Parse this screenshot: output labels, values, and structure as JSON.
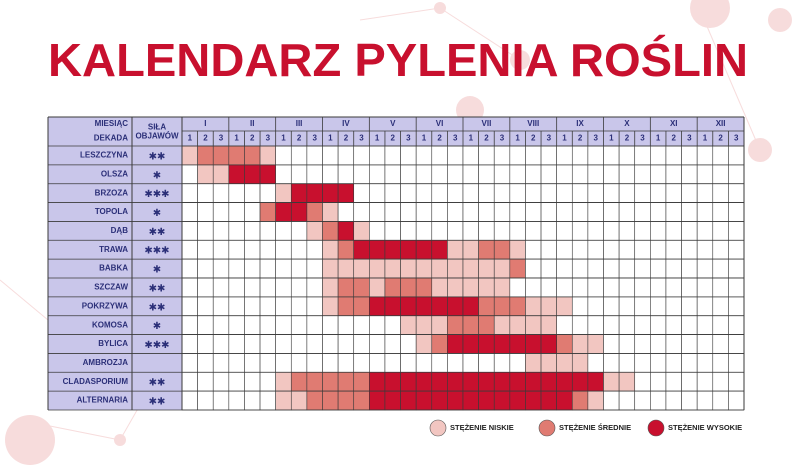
{
  "title": "KALENDARZ PYLENIA ROŚLIN",
  "table": {
    "header": {
      "month_label": "MIESIĄC",
      "decade_label": "DEKADA",
      "strength_label": "SIŁA OBJAWÓW",
      "months": [
        "I",
        "II",
        "III",
        "IV",
        "V",
        "VI",
        "VII",
        "VIII",
        "IX",
        "X",
        "XI",
        "XII"
      ],
      "decades": [
        "1",
        "2",
        "3"
      ]
    },
    "rows": [
      {
        "name": "LESZCZYNA",
        "strength": "✱✱",
        "levels": [
          1,
          2,
          2,
          2,
          2,
          1,
          0,
          0,
          0,
          0,
          0,
          0,
          0,
          0,
          0,
          0,
          0,
          0,
          0,
          0,
          0,
          0,
          0,
          0,
          0,
          0,
          0,
          0,
          0,
          0,
          0,
          0,
          0,
          0,
          0,
          0
        ]
      },
      {
        "name": "OLSZA",
        "strength": "✱",
        "levels": [
          0,
          1,
          1,
          3,
          3,
          3,
          0,
          0,
          0,
          0,
          0,
          0,
          0,
          0,
          0,
          0,
          0,
          0,
          0,
          0,
          0,
          0,
          0,
          0,
          0,
          0,
          0,
          0,
          0,
          0,
          0,
          0,
          0,
          0,
          0,
          0
        ]
      },
      {
        "name": "BRZOZA",
        "strength": "✱✱✱",
        "levels": [
          0,
          0,
          0,
          0,
          0,
          0,
          1,
          3,
          3,
          3,
          3,
          0,
          0,
          0,
          0,
          0,
          0,
          0,
          0,
          0,
          0,
          0,
          0,
          0,
          0,
          0,
          0,
          0,
          0,
          0,
          0,
          0,
          0,
          0,
          0,
          0
        ]
      },
      {
        "name": "TOPOLA",
        "strength": "✱",
        "levels": [
          0,
          0,
          0,
          0,
          0,
          2,
          3,
          3,
          2,
          1,
          0,
          0,
          0,
          0,
          0,
          0,
          0,
          0,
          0,
          0,
          0,
          0,
          0,
          0,
          0,
          0,
          0,
          0,
          0,
          0,
          0,
          0,
          0,
          0,
          0,
          0
        ]
      },
      {
        "name": "DĄB",
        "strength": "✱✱",
        "levels": [
          0,
          0,
          0,
          0,
          0,
          0,
          0,
          0,
          1,
          2,
          3,
          1,
          0,
          0,
          0,
          0,
          0,
          0,
          0,
          0,
          0,
          0,
          0,
          0,
          0,
          0,
          0,
          0,
          0,
          0,
          0,
          0,
          0,
          0,
          0,
          0
        ]
      },
      {
        "name": "TRAWA",
        "strength": "✱✱✱",
        "levels": [
          0,
          0,
          0,
          0,
          0,
          0,
          0,
          0,
          0,
          1,
          2,
          3,
          3,
          3,
          3,
          3,
          3,
          1,
          1,
          2,
          2,
          1,
          0,
          0,
          0,
          0,
          0,
          0,
          0,
          0,
          0,
          0,
          0,
          0,
          0,
          0
        ]
      },
      {
        "name": "BABKA",
        "strength": "✱",
        "levels": [
          0,
          0,
          0,
          0,
          0,
          0,
          0,
          0,
          0,
          1,
          1,
          1,
          1,
          1,
          1,
          1,
          1,
          1,
          1,
          1,
          1,
          2,
          0,
          0,
          0,
          0,
          0,
          0,
          0,
          0,
          0,
          0,
          0,
          0,
          0,
          0
        ]
      },
      {
        "name": "SZCZAW",
        "strength": "✱✱",
        "levels": [
          0,
          0,
          0,
          0,
          0,
          0,
          0,
          0,
          0,
          1,
          2,
          2,
          1,
          2,
          2,
          2,
          1,
          1,
          1,
          1,
          1,
          0,
          0,
          0,
          0,
          0,
          0,
          0,
          0,
          0,
          0,
          0,
          0,
          0,
          0,
          0
        ]
      },
      {
        "name": "POKRZYWA",
        "strength": "✱✱",
        "levels": [
          0,
          0,
          0,
          0,
          0,
          0,
          0,
          0,
          0,
          1,
          2,
          2,
          3,
          3,
          3,
          3,
          3,
          3,
          3,
          2,
          2,
          2,
          1,
          1,
          1,
          0,
          0,
          0,
          0,
          0,
          0,
          0,
          0,
          0,
          0,
          0
        ]
      },
      {
        "name": "KOMOSA",
        "strength": "✱",
        "levels": [
          0,
          0,
          0,
          0,
          0,
          0,
          0,
          0,
          0,
          0,
          0,
          0,
          0,
          0,
          1,
          1,
          1,
          2,
          2,
          2,
          1,
          1,
          1,
          1,
          0,
          0,
          0,
          0,
          0,
          0,
          0,
          0,
          0,
          0,
          0,
          0
        ]
      },
      {
        "name": "BYLICA",
        "strength": "✱✱✱",
        "levels": [
          0,
          0,
          0,
          0,
          0,
          0,
          0,
          0,
          0,
          0,
          0,
          0,
          0,
          0,
          0,
          1,
          2,
          3,
          3,
          3,
          3,
          3,
          3,
          3,
          2,
          1,
          1,
          0,
          0,
          0,
          0,
          0,
          0,
          0,
          0,
          0
        ]
      },
      {
        "name": "AMBROZJA",
        "strength": "",
        "levels": [
          0,
          0,
          0,
          0,
          0,
          0,
          0,
          0,
          0,
          0,
          0,
          0,
          0,
          0,
          0,
          0,
          0,
          0,
          0,
          0,
          0,
          0,
          1,
          1,
          1,
          1,
          0,
          0,
          0,
          0,
          0,
          0,
          0,
          0,
          0,
          0
        ]
      },
      {
        "name": "CLADASPORIUM",
        "strength": "✱✱",
        "levels": [
          0,
          0,
          0,
          0,
          0,
          0,
          1,
          2,
          2,
          2,
          2,
          2,
          3,
          3,
          3,
          3,
          3,
          3,
          3,
          3,
          3,
          3,
          3,
          3,
          3,
          3,
          3,
          1,
          1,
          0,
          0,
          0,
          0,
          0,
          0,
          0
        ]
      },
      {
        "name": "ALTERNARIA",
        "strength": "✱✱",
        "levels": [
          0,
          0,
          0,
          0,
          0,
          0,
          1,
          1,
          2,
          2,
          2,
          2,
          3,
          3,
          3,
          3,
          3,
          3,
          3,
          3,
          3,
          3,
          3,
          3,
          3,
          2,
          1,
          0,
          0,
          0,
          0,
          0,
          0,
          0,
          0,
          0
        ]
      }
    ]
  },
  "legend": [
    {
      "label": "STĘŻENIE NISKIE",
      "color": "#f2c6c1"
    },
    {
      "label": "STĘŻENIE ŚREDNIE",
      "color": "#e07b72"
    },
    {
      "label": "STĘŻENIE WYSOKIE",
      "color": "#c8102e"
    }
  ]
}
